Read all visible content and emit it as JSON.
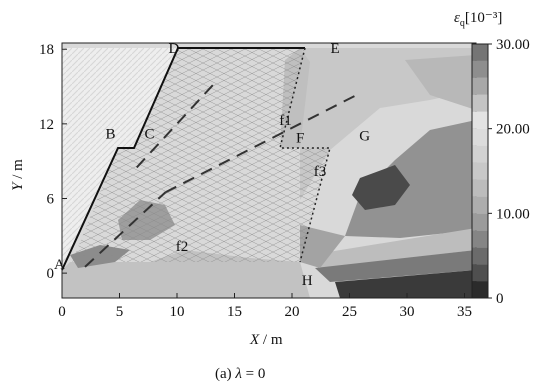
{
  "chart_data": {
    "type": "heatmap",
    "title": "",
    "caption": "(a) λ = 0",
    "caption_parts": {
      "prefix": "(a) ",
      "symbol": "λ",
      "suffix": " = 0"
    },
    "xlabel": "X / m",
    "xlabel_parts": {
      "var": "X",
      "unit": " / m"
    },
    "ylabel": "Y / m",
    "ylabel_parts": {
      "var": "Y",
      "unit": " / m"
    },
    "xlim": [
      0,
      36
    ],
    "ylim": [
      -2,
      18.5
    ],
    "xticks": [
      0,
      5,
      10,
      15,
      20,
      25,
      30,
      35
    ],
    "yticks": [
      0,
      6,
      12,
      18
    ],
    "colorbar": {
      "label": "εq[10⁻³]",
      "label_parts": {
        "symbol": "ε",
        "sub": "q",
        "unit": "[10⁻³]"
      },
      "range": [
        0,
        30
      ],
      "ticks": [
        0,
        10,
        20,
        30
      ],
      "tick_labels": [
        "0",
        "10.00",
        "20.00",
        "30.00"
      ],
      "levels": 15,
      "colors": [
        "#2b2b2b",
        "#4f4f4f",
        "#6b6b6b",
        "#858585",
        "#9b9b9b",
        "#adadad",
        "#bcbcbc",
        "#c8c8c8",
        "#d2d2d2",
        "#dcdcdc",
        "#e3e3e3",
        "#c4c4c4",
        "#a8a8a8",
        "#8e8e8e",
        "#757575"
      ]
    },
    "points": [
      {
        "label": "A",
        "x": 0,
        "y": 0
      },
      {
        "label": "B",
        "x": 5,
        "y": 10
      },
      {
        "label": "C",
        "x": 6.3,
        "y": 10
      },
      {
        "label": "D",
        "x": 11,
        "y": 18
      },
      {
        "label": "E",
        "x": 23,
        "y": 18
      },
      {
        "label": "F",
        "x": 20,
        "y": 10
      },
      {
        "label": "G",
        "x": 25.5,
        "y": 10
      },
      {
        "label": "H",
        "x": 20.5,
        "y": 0
      }
    ],
    "faults": [
      {
        "label": "f1",
        "start": [
          6.5,
          8.5
        ],
        "end": [
          13.5,
          15.5
        ],
        "label_at": [
          19.5,
          12.3
        ]
      },
      {
        "label": "f2",
        "start": [
          2,
          0.5
        ],
        "end": [
          9,
          6.5
        ],
        "label_at": [
          10.5,
          2.2
        ]
      },
      {
        "label": "f3",
        "start": [
          9,
          6.5
        ],
        "end": [
          26,
          14.5
        ],
        "label_at": [
          22.5,
          8.2
        ]
      }
    ]
  }
}
